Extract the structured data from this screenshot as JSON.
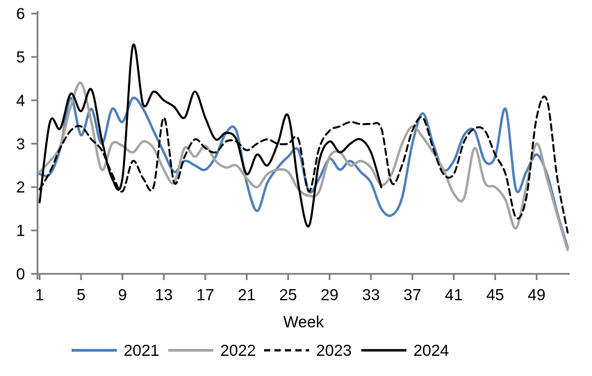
{
  "chart_data": {
    "type": "line",
    "title": "",
    "xlabel": "Week",
    "ylabel": "",
    "xlim": [
      1,
      52
    ],
    "ylim": [
      0,
      6
    ],
    "x_ticks": [
      1,
      5,
      9,
      13,
      17,
      21,
      25,
      29,
      33,
      37,
      41,
      45,
      49
    ],
    "y_ticks": [
      0,
      1,
      2,
      3,
      4,
      5,
      6
    ],
    "grid": false,
    "legend_position": "bottom",
    "axis_color": "#808080",
    "x": [
      1,
      2,
      3,
      4,
      5,
      6,
      7,
      8,
      9,
      10,
      11,
      12,
      13,
      14,
      15,
      16,
      17,
      18,
      19,
      20,
      21,
      22,
      23,
      24,
      25,
      26,
      27,
      28,
      29,
      30,
      31,
      32,
      33,
      34,
      35,
      36,
      37,
      38,
      39,
      40,
      41,
      42,
      43,
      44,
      45,
      46,
      47,
      48,
      49,
      50,
      51,
      52
    ],
    "series": [
      {
        "name": "2021",
        "color": "#4F81BD",
        "style": "solid",
        "width": 3.5,
        "values": [
          2.3,
          2.3,
          2.9,
          4.05,
          3.2,
          3.8,
          3.0,
          3.8,
          3.5,
          4.05,
          3.8,
          3.3,
          2.8,
          2.35,
          2.6,
          2.5,
          2.4,
          2.7,
          3.25,
          3.3,
          2.1,
          1.45,
          2.1,
          2.45,
          2.7,
          2.85,
          1.9,
          2.2,
          2.65,
          2.4,
          2.6,
          2.35,
          2.1,
          1.5,
          1.35,
          1.75,
          3.0,
          3.7,
          3.0,
          2.4,
          2.6,
          3.2,
          3.3,
          2.6,
          2.7,
          3.8,
          1.95,
          2.35,
          2.75,
          2.3,
          1.4,
          0.6
        ]
      },
      {
        "name": "2022",
        "color": "#A6A6A6",
        "style": "solid",
        "width": 3.5,
        "values": [
          2.35,
          2.6,
          2.95,
          3.85,
          4.4,
          3.5,
          2.4,
          3.0,
          2.95,
          2.8,
          3.05,
          2.9,
          2.4,
          2.1,
          2.9,
          2.7,
          2.95,
          2.6,
          2.45,
          2.5,
          2.2,
          2.0,
          2.3,
          2.4,
          2.35,
          1.95,
          1.8,
          1.9,
          2.7,
          2.8,
          2.5,
          2.6,
          2.45,
          2.05,
          2.3,
          3.0,
          3.4,
          3.15,
          2.8,
          2.4,
          1.85,
          1.75,
          2.9,
          2.1,
          2.0,
          1.7,
          1.05,
          2.0,
          3.0,
          2.2,
          1.35,
          0.55
        ]
      },
      {
        "name": "2023",
        "color": "#000000",
        "style": "dashed",
        "width": 2.8,
        "values": [
          1.95,
          2.35,
          2.9,
          3.3,
          3.4,
          3.1,
          2.85,
          2.3,
          1.9,
          2.6,
          2.2,
          2.0,
          3.6,
          2.1,
          2.7,
          3.1,
          2.9,
          2.8,
          3.05,
          3.05,
          2.85,
          3.0,
          3.1,
          3.0,
          3.0,
          3.1,
          1.9,
          2.9,
          3.3,
          3.4,
          3.5,
          3.45,
          3.45,
          3.35,
          2.1,
          2.5,
          3.3,
          3.6,
          2.9,
          2.3,
          2.3,
          3.05,
          3.35,
          3.3,
          2.75,
          2.3,
          1.3,
          1.75,
          3.6,
          4.0,
          2.2,
          0.95
        ]
      },
      {
        "name": "2024",
        "color": "#000000",
        "style": "solid",
        "width": 3.0,
        "values": [
          1.65,
          3.5,
          3.35,
          4.15,
          3.75,
          4.25,
          3.1,
          2.2,
          2.2,
          5.25,
          3.9,
          4.2,
          4.0,
          3.85,
          3.6,
          4.2,
          3.6,
          3.1,
          3.25,
          3.1,
          2.3,
          2.75,
          2.5,
          3.0,
          3.65,
          2.05,
          1.1,
          2.6,
          3.05,
          2.8,
          3.0,
          3.1,
          2.8,
          2.0,
          null,
          null,
          null,
          null,
          null,
          null,
          null,
          null,
          null,
          null,
          null,
          null,
          null,
          null,
          null,
          null,
          null,
          null
        ]
      }
    ]
  }
}
